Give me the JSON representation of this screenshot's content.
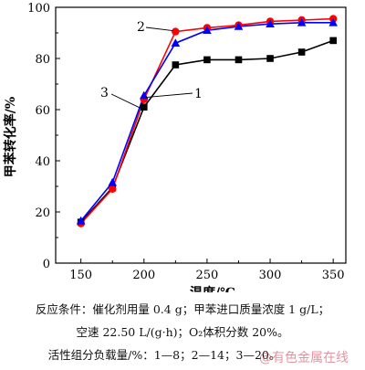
{
  "chart_data": {
    "type": "line",
    "xlabel": "温度/℃",
    "ylabel": "甲苯转化率/%",
    "xlim": [
      130,
      360
    ],
    "ylim": [
      0,
      100
    ],
    "x_ticks": [
      "150",
      "200",
      "250",
      "300",
      "350"
    ],
    "y_ticks": [
      "0",
      "20",
      "40",
      "60",
      "80",
      "100"
    ],
    "x_tick_values": [
      150,
      200,
      250,
      300,
      350
    ],
    "y_tick_values": [
      0,
      20,
      40,
      60,
      80,
      100
    ],
    "grid": false,
    "x": [
      150,
      175,
      200,
      225,
      250,
      275,
      300,
      325,
      350
    ],
    "series": [
      {
        "name": "1",
        "color": "#0000ff",
        "marker": "triangle",
        "values": [
          16.5,
          31.5,
          65.5,
          86,
          91,
          92.5,
          93.5,
          94,
          94
        ]
      },
      {
        "name": "2",
        "color": "#ff0000",
        "marker": "circle",
        "values": [
          15.5,
          29,
          64,
          90.5,
          92,
          93,
          94.5,
          95,
          95.5
        ]
      },
      {
        "name": "3",
        "color": "#000000",
        "marker": "square",
        "values": [
          16,
          29.5,
          61,
          77.5,
          79.5,
          79.5,
          80,
          82.5,
          87
        ]
      }
    ],
    "annotations": [
      "2",
      "3",
      "1"
    ]
  },
  "caption": {
    "line1": "反应条件：催化剂用量 0.4 g；甲苯进口质量浓度 1 g/L；",
    "line2": "空速 22.50 L/(g·h)；O₂体积分数 20%。",
    "line3": "活性组分负载量/%：1—8；2—14；3—20。"
  },
  "watermark": "@有色金属在线"
}
